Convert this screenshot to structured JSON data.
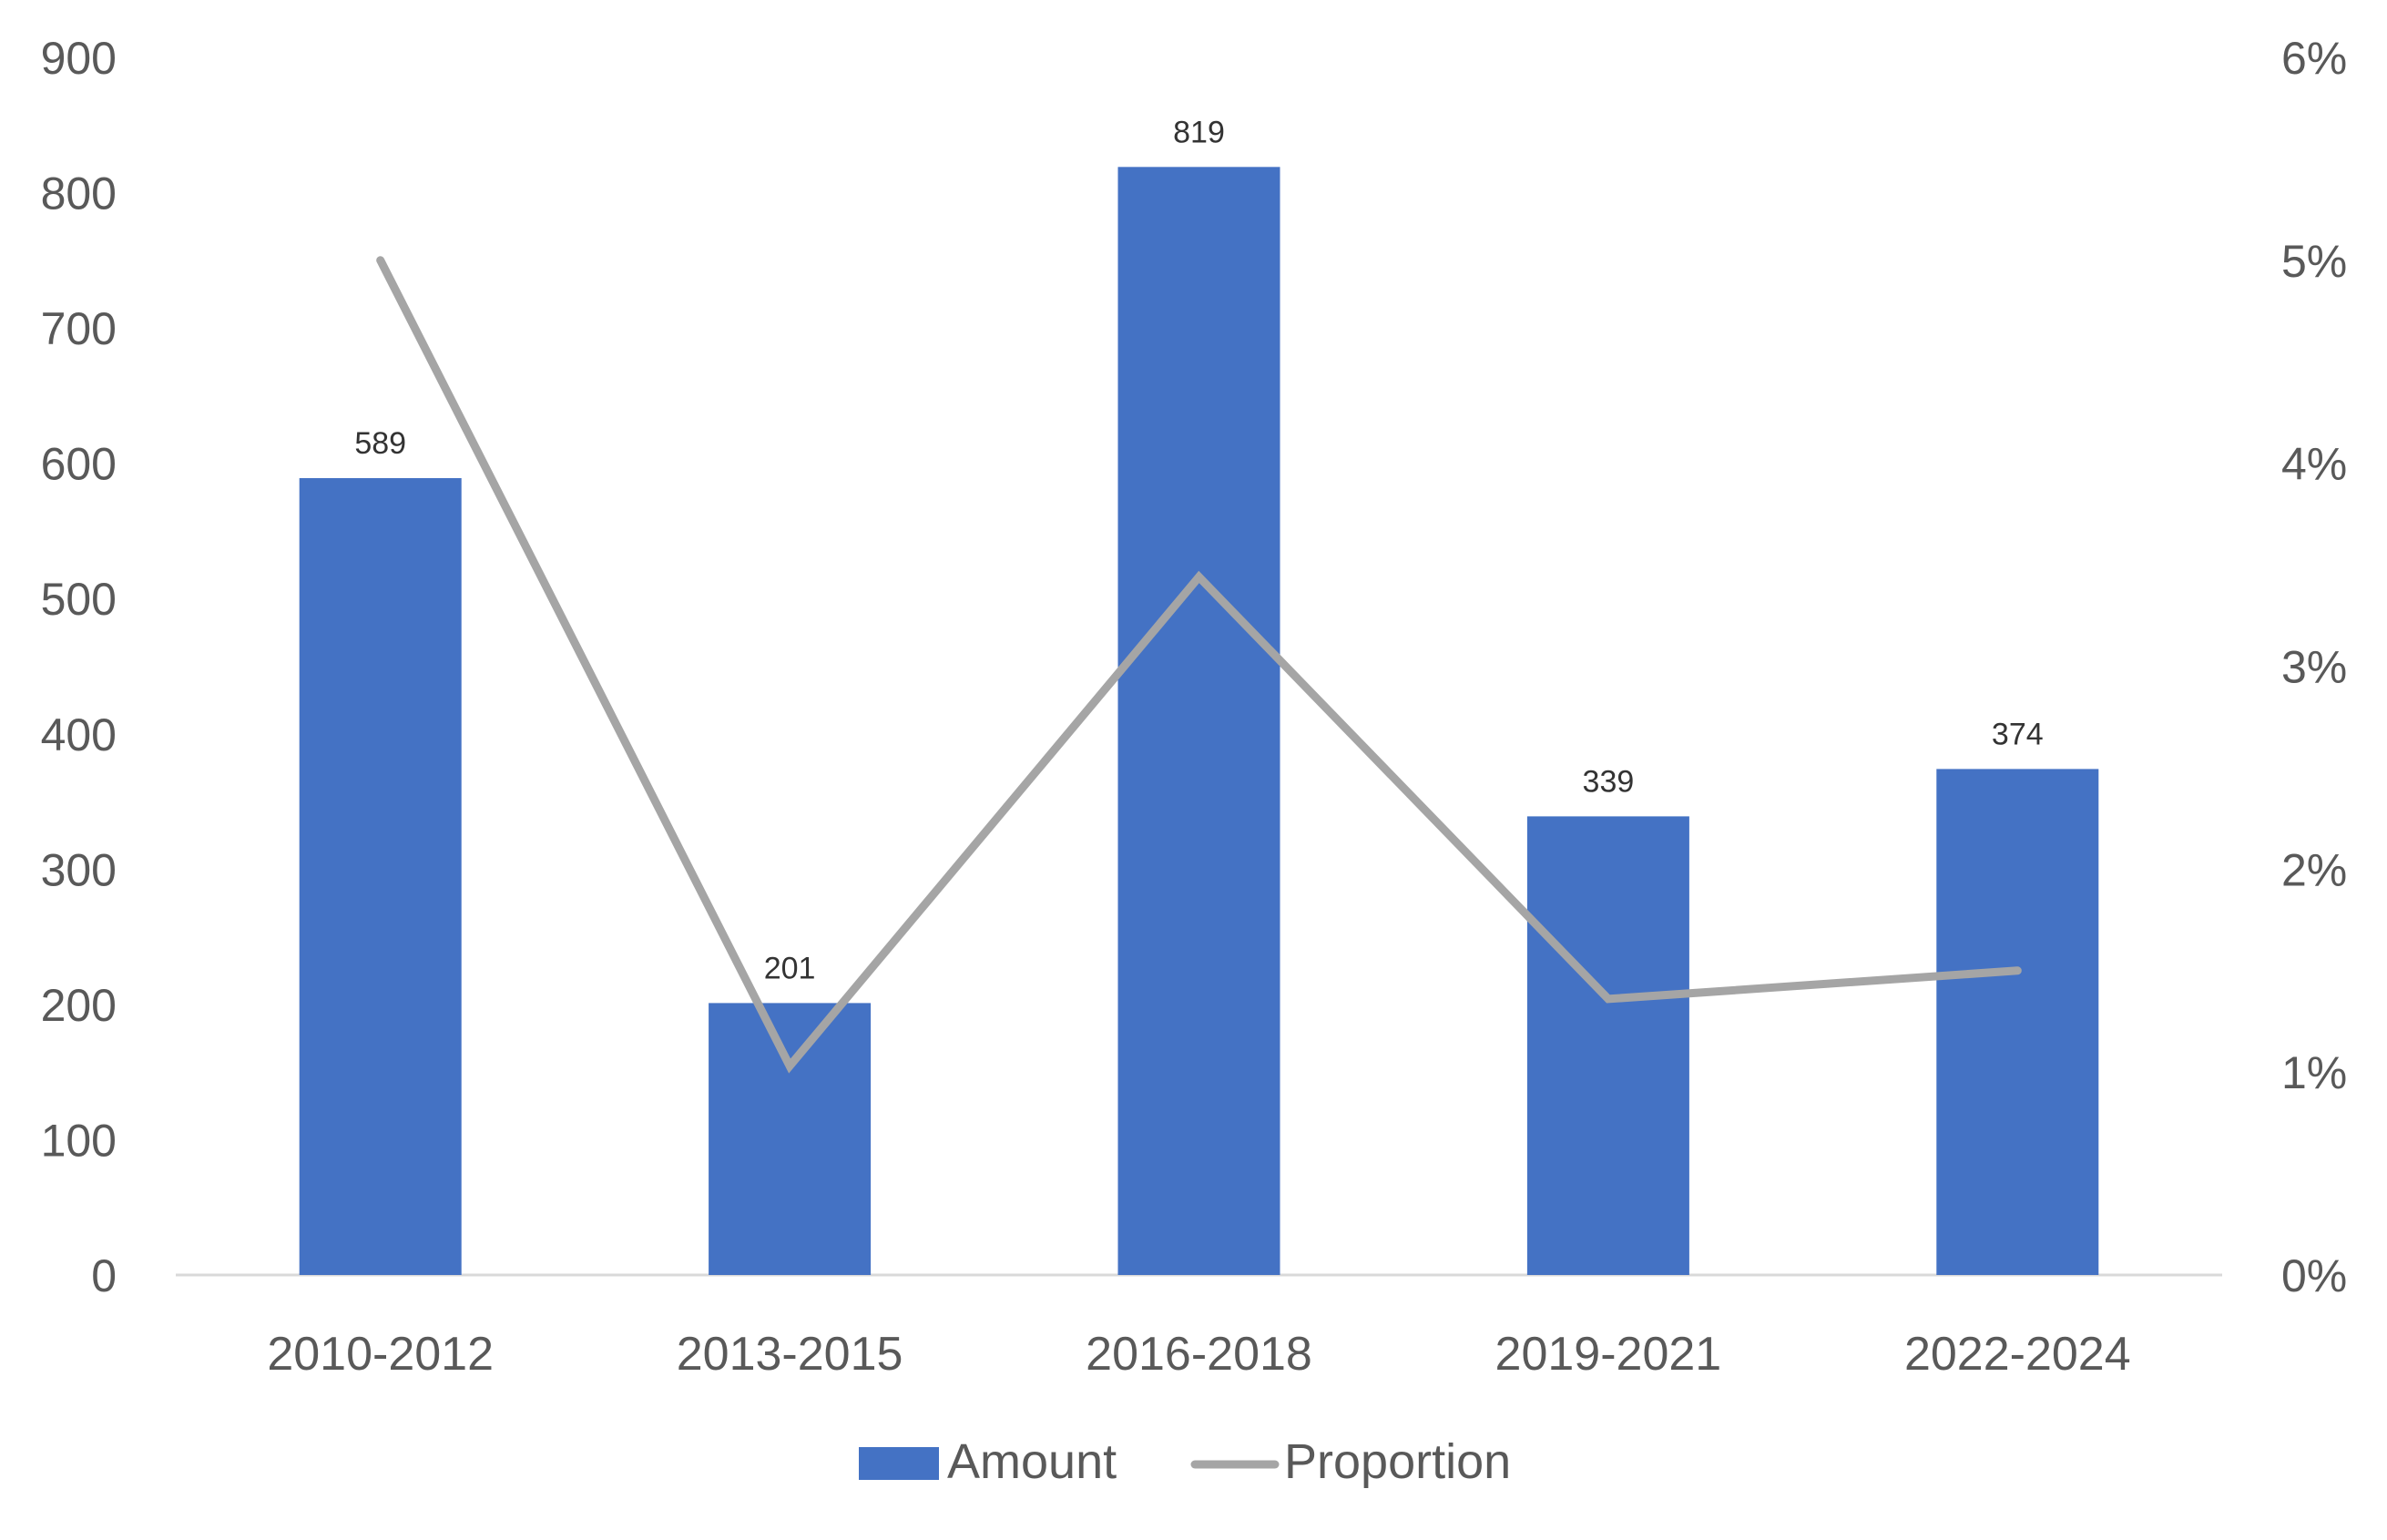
{
  "chart_data": {
    "type": "bar",
    "title": "",
    "categories": [
      "2010-2012",
      "2013-2015",
      "2016-2018",
      "2019-2021",
      "2022-2024"
    ],
    "series": [
      {
        "name": "Amount",
        "type": "bar",
        "axis": "left",
        "color": "#4472C4",
        "values": [
          589,
          201,
          819,
          339,
          374
        ],
        "data_labels": [
          "589",
          "201",
          "819",
          "339",
          "374"
        ]
      },
      {
        "name": "Proportion",
        "type": "line",
        "axis": "right",
        "color": "#A5A5A5",
        "values": [
          0.05,
          0.0103,
          0.0344,
          0.0136,
          0.015
        ]
      }
    ],
    "y_left": {
      "min": 0,
      "max": 900,
      "ticks": [
        "0",
        "100",
        "200",
        "300",
        "400",
        "500",
        "600",
        "700",
        "800",
        "900"
      ]
    },
    "y_right": {
      "min": 0,
      "max": 0.06,
      "ticks": [
        "0%",
        "1%",
        "2%",
        "3%",
        "4%",
        "5%",
        "6%"
      ]
    },
    "grid": false,
    "legend_position": "bottom"
  }
}
